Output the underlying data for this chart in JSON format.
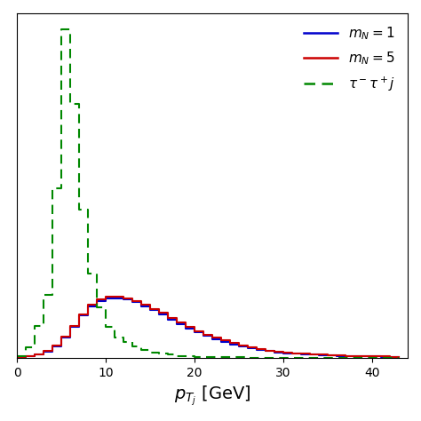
{
  "xlim": [
    0,
    44
  ],
  "ylim_min": 0,
  "xlabel": "$p_{T_j}$ [GeV]",
  "xticks": [
    0,
    10,
    20,
    30,
    40
  ],
  "blue_color": "#0000cc",
  "red_color": "#cc0000",
  "green_color": "#008800",
  "blue_bins": [
    0,
    1,
    2,
    3,
    4,
    5,
    6,
    7,
    8,
    9,
    10,
    11,
    12,
    13,
    14,
    15,
    16,
    17,
    18,
    19,
    20,
    21,
    22,
    23,
    24,
    25,
    26,
    27,
    28,
    29,
    30,
    31,
    32,
    33,
    34,
    35,
    36,
    37,
    38,
    39,
    40,
    41,
    42,
    43,
    44
  ],
  "blue_vals": [
    0.002,
    0.003,
    0.006,
    0.012,
    0.022,
    0.038,
    0.058,
    0.08,
    0.098,
    0.108,
    0.113,
    0.113,
    0.11,
    0.105,
    0.098,
    0.09,
    0.082,
    0.073,
    0.064,
    0.056,
    0.049,
    0.042,
    0.036,
    0.031,
    0.026,
    0.022,
    0.019,
    0.016,
    0.013,
    0.011,
    0.009,
    0.008,
    0.007,
    0.006,
    0.005,
    0.005,
    0.004,
    0.004,
    0.003,
    0.003,
    0.003,
    0.002,
    0.002,
    0.002
  ],
  "red_bins": [
    0,
    1,
    2,
    3,
    4,
    5,
    6,
    7,
    8,
    9,
    10,
    11,
    12,
    13,
    14,
    15,
    16,
    17,
    18,
    19,
    20,
    21,
    22,
    23,
    24,
    25,
    26,
    27,
    28,
    29,
    30,
    31,
    32,
    33,
    34,
    35,
    36,
    37,
    38,
    39,
    40,
    41,
    42,
    43,
    44
  ],
  "red_vals": [
    0.002,
    0.003,
    0.007,
    0.013,
    0.024,
    0.04,
    0.06,
    0.082,
    0.1,
    0.111,
    0.116,
    0.116,
    0.113,
    0.108,
    0.101,
    0.093,
    0.085,
    0.076,
    0.067,
    0.059,
    0.051,
    0.044,
    0.038,
    0.033,
    0.028,
    0.024,
    0.02,
    0.017,
    0.014,
    0.012,
    0.01,
    0.009,
    0.008,
    0.007,
    0.006,
    0.005,
    0.005,
    0.004,
    0.004,
    0.003,
    0.003,
    0.003,
    0.002,
    0.002
  ],
  "green_bins": [
    0,
    1,
    2,
    3,
    4,
    5,
    6,
    7,
    8,
    9,
    10,
    11,
    12,
    13,
    14,
    15,
    16,
    17,
    18,
    19,
    20,
    21,
    22,
    23,
    24,
    25,
    26,
    27,
    28,
    29,
    30,
    31,
    32,
    33,
    34,
    35,
    36,
    37,
    38,
    39,
    40,
    41,
    42,
    43,
    44
  ],
  "green_vals": [
    0.003,
    0.02,
    0.06,
    0.12,
    0.32,
    0.62,
    0.48,
    0.28,
    0.16,
    0.095,
    0.058,
    0.038,
    0.03,
    0.022,
    0.016,
    0.011,
    0.008,
    0.006,
    0.004,
    0.003,
    0.002,
    0.002,
    0.001,
    0.001,
    0.001,
    0.001,
    0.0,
    0.0,
    0.0,
    0.0,
    0.0,
    0.0,
    0.0,
    0.0,
    0.0,
    0.0,
    0.0,
    0.0,
    0.0,
    0.0,
    0.0,
    0.0,
    0.0,
    0.0
  ],
  "legend_label_blue": "$m_N = 1$",
  "legend_label_red": "$m_N = 5$",
  "legend_label_green": "$\\tau^- \\tau^+ j$"
}
